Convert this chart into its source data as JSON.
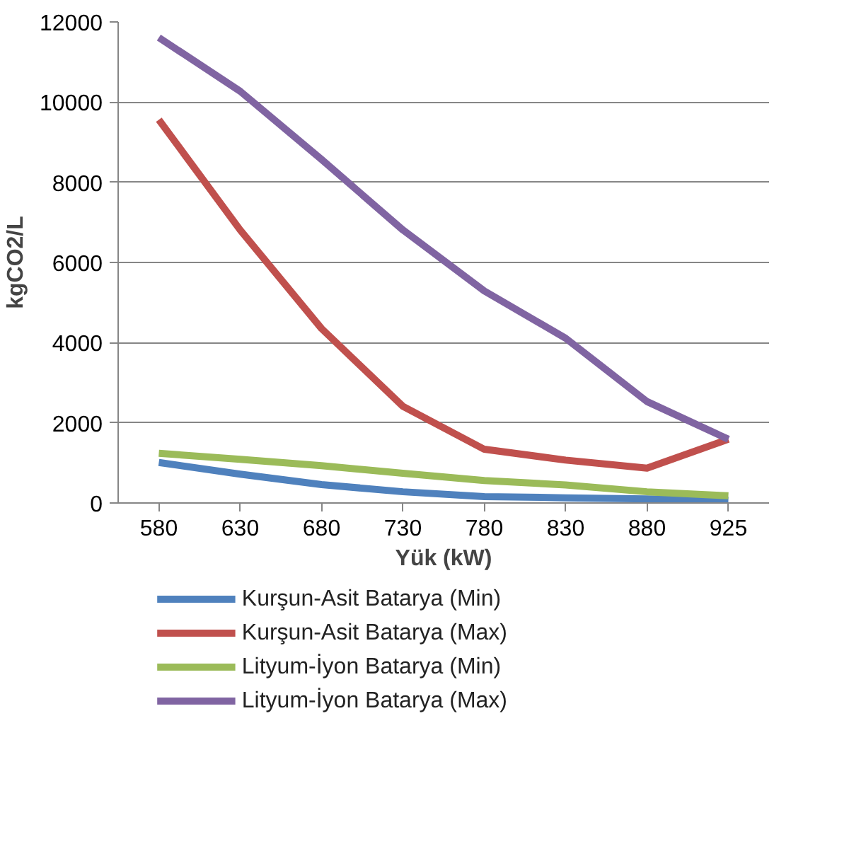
{
  "chart_data": {
    "type": "line",
    "xlabel": "Yük (kW)",
    "ylabel": "kgCO2/L",
    "categories": [
      "580",
      "630",
      "680",
      "730",
      "780",
      "830",
      "880",
      "925"
    ],
    "series": [
      {
        "name": "Kurşun-Asit Batarya (Min)",
        "color": "#4f81bd",
        "values": [
          1010,
          720,
          460,
          280,
          160,
          130,
          100,
          70
        ]
      },
      {
        "name": "Kurşun-Asit Batarya (Max)",
        "color": "#c0504d",
        "values": [
          9560,
          6810,
          4350,
          2410,
          1340,
          1070,
          870,
          1590
        ]
      },
      {
        "name": "Lityum-İyon Batarya (Min)",
        "color": "#9bbb59",
        "values": [
          1240,
          1090,
          930,
          740,
          560,
          450,
          280,
          180
        ]
      },
      {
        "name": "Lityum-İyon Batarya (Max)",
        "color": "#8064a2",
        "values": [
          11610,
          10270,
          8570,
          6810,
          5290,
          4110,
          2530,
          1590
        ]
      }
    ],
    "ylim": [
      0,
      12000
    ],
    "yticks": [
      0,
      2000,
      4000,
      6000,
      8000,
      10000,
      12000
    ],
    "grid": "y",
    "legend": "bottom",
    "line_style": "solid"
  }
}
